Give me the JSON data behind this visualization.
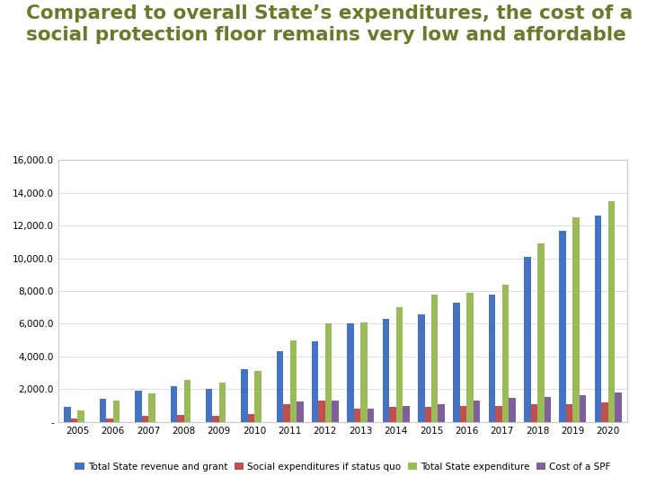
{
  "title_line1": "Compared to overall State’s expenditures, the cost of a",
  "title_line2": "social protection floor remains very low and affordable",
  "title_color": "#6b7a2a",
  "years": [
    2005,
    2006,
    2007,
    2008,
    2009,
    2010,
    2011,
    2012,
    2013,
    2014,
    2015,
    2016,
    2017,
    2018,
    2019,
    2020
  ],
  "series": {
    "Total State revenue and grant": {
      "color": "#4472c4",
      "values": [
        900,
        1400,
        1900,
        2200,
        2000,
        3200,
        4300,
        4900,
        6000,
        6300,
        6600,
        7300,
        7800,
        10100,
        11700,
        12600
      ]
    },
    "Social expenditures if status quo": {
      "color": "#c0504d",
      "values": [
        200,
        200,
        350,
        450,
        400,
        500,
        1100,
        1300,
        800,
        900,
        900,
        1000,
        1000,
        1100,
        1100,
        1200
      ]
    },
    "Total State expenditure": {
      "color": "#9bbb59",
      "values": [
        700,
        1300,
        1750,
        2550,
        2400,
        3100,
        5000,
        6000,
        6100,
        7000,
        7800,
        7900,
        8400,
        10900,
        12500,
        13500
      ]
    },
    "Cost of a SPF": {
      "color": "#7f5f9e",
      "values": [
        0,
        0,
        0,
        0,
        0,
        0,
        1250,
        1300,
        800,
        1000,
        1100,
        1300,
        1450,
        1550,
        1650,
        1800
      ]
    }
  },
  "ylim": [
    0,
    16000
  ],
  "yticks": [
    0,
    2000,
    4000,
    6000,
    8000,
    10000,
    12000,
    14000,
    16000
  ],
  "background_color": "#ffffff",
  "plot_bg_color": "#ffffff",
  "grid_color": "#d9d9d9",
  "bar_width": 0.19,
  "legend_fontsize": 7.5,
  "title_fontsize": 15.5,
  "box_color": "#c8c8c8"
}
